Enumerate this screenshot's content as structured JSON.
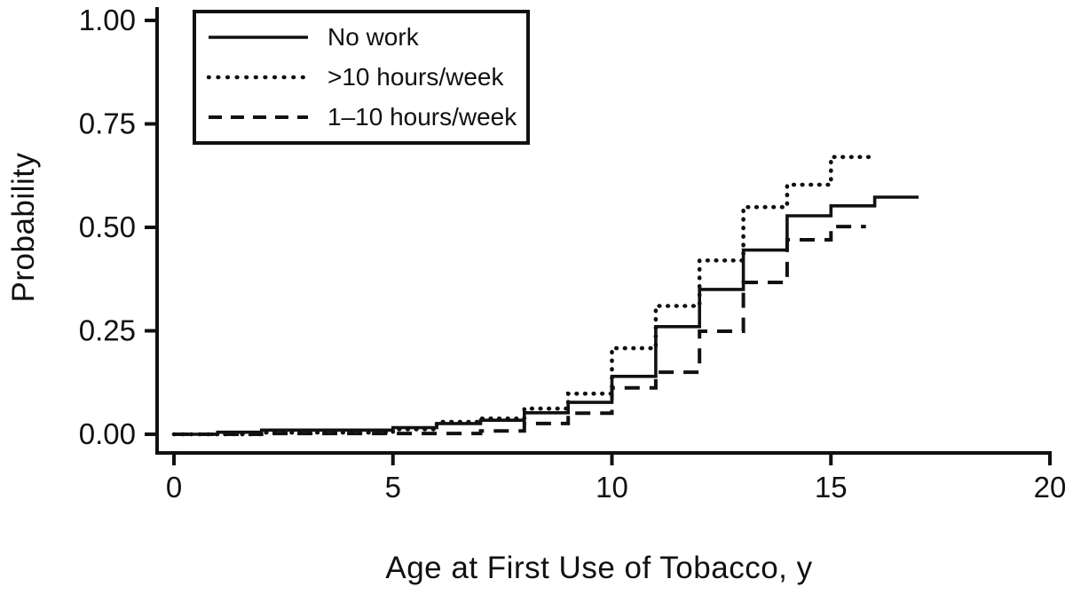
{
  "figure": {
    "background": "#ffffff",
    "line_color": "#111111"
  },
  "chart_data": {
    "type": "line",
    "subtype": "step-after",
    "title": "",
    "xlabel": "Age at First Use of Tobacco, y",
    "ylabel": "Probability",
    "xlim": [
      0,
      20
    ],
    "ylim": [
      0,
      1.0
    ],
    "grid": false,
    "legend_position": "top-left",
    "x_ticks": {
      "values": [
        0,
        5,
        10,
        15,
        20
      ],
      "labels": [
        "0",
        "5",
        "10",
        "15",
        "20"
      ]
    },
    "y_ticks": {
      "values": [
        0,
        0.25,
        0.5,
        0.75,
        1.0
      ],
      "labels": [
        "0.00",
        "0.25",
        "0.50",
        "0.75",
        "1.00"
      ]
    },
    "series": [
      {
        "name": "No work",
        "line_style": "solid",
        "end_x": 17,
        "points": [
          [
            0,
            0
          ],
          [
            1,
            0.005
          ],
          [
            2,
            0.01
          ],
          [
            5,
            0.016
          ],
          [
            6,
            0.026
          ],
          [
            7,
            0.034
          ],
          [
            8,
            0.052
          ],
          [
            9,
            0.077
          ],
          [
            10,
            0.14
          ],
          [
            11,
            0.26
          ],
          [
            12,
            0.35
          ],
          [
            13,
            0.445
          ],
          [
            14,
            0.528
          ],
          [
            15,
            0.552
          ],
          [
            16,
            0.573
          ]
        ]
      },
      {
        "name": ">10 hours/week",
        "line_style": "dotted",
        "end_x": 15.9,
        "points": [
          [
            0,
            0
          ],
          [
            2,
            0.004
          ],
          [
            5,
            0.012
          ],
          [
            6,
            0.03
          ],
          [
            7,
            0.038
          ],
          [
            8,
            0.062
          ],
          [
            9,
            0.098
          ],
          [
            10,
            0.208
          ],
          [
            11,
            0.31
          ],
          [
            12,
            0.42
          ],
          [
            13,
            0.549
          ],
          [
            14,
            0.603
          ],
          [
            15,
            0.67
          ]
        ]
      },
      {
        "name": "1–10 hours/week",
        "line_style": "dashed",
        "end_x": 15.8,
        "points": [
          [
            0,
            0
          ],
          [
            2,
            0.002
          ],
          [
            7,
            0.008
          ],
          [
            8,
            0.026
          ],
          [
            9,
            0.051
          ],
          [
            10,
            0.112
          ],
          [
            11,
            0.15
          ],
          [
            12,
            0.249
          ],
          [
            13,
            0.367
          ],
          [
            14,
            0.47
          ],
          [
            15,
            0.502
          ]
        ]
      }
    ]
  }
}
